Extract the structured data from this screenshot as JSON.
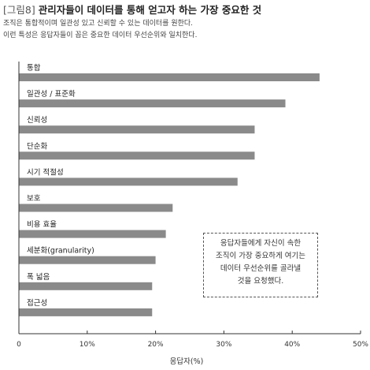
{
  "header": {
    "tag": "[그림8]",
    "title": "관리자들이 데이터를 통해 얻고자 하는 가장 중요한 것",
    "desc_line1": "조직은 통합적이며 일관성 있고 신뢰할 수 있는 데이터를 원한다.",
    "desc_line2": "이런 특성은 응답자들이 꼽은 중요한 데이터 우선순위와 일치한다."
  },
  "callout": {
    "line1": "응답자들에게 자신이 속한",
    "line2": "조직이 가장 중요하게 여기는",
    "line3": "데이터 우선순위를 골라낼",
    "line4": "것을 요청했다."
  },
  "chart_data": {
    "type": "bar",
    "orientation": "horizontal",
    "categories": [
      "통합",
      "일관성 / 표준화",
      "신뢰성",
      "단순화",
      "시기 적절성",
      "보호",
      "비용 효율",
      "세분화(granularity)",
      "폭 넓음",
      "접근성"
    ],
    "values": [
      44,
      39,
      34.5,
      34.5,
      32,
      22.5,
      21.5,
      20,
      19.5,
      19.5
    ],
    "xlabel": "응답자(%)",
    "ylabel": "",
    "xlim": [
      0,
      50
    ],
    "xticks": [
      0,
      10,
      20,
      30,
      40,
      50
    ],
    "xtick_labels": [
      "0",
      "10%",
      "20%",
      "30%",
      "40%",
      "50%"
    ],
    "bar_color": "#8a8a8a",
    "grid": false
  }
}
